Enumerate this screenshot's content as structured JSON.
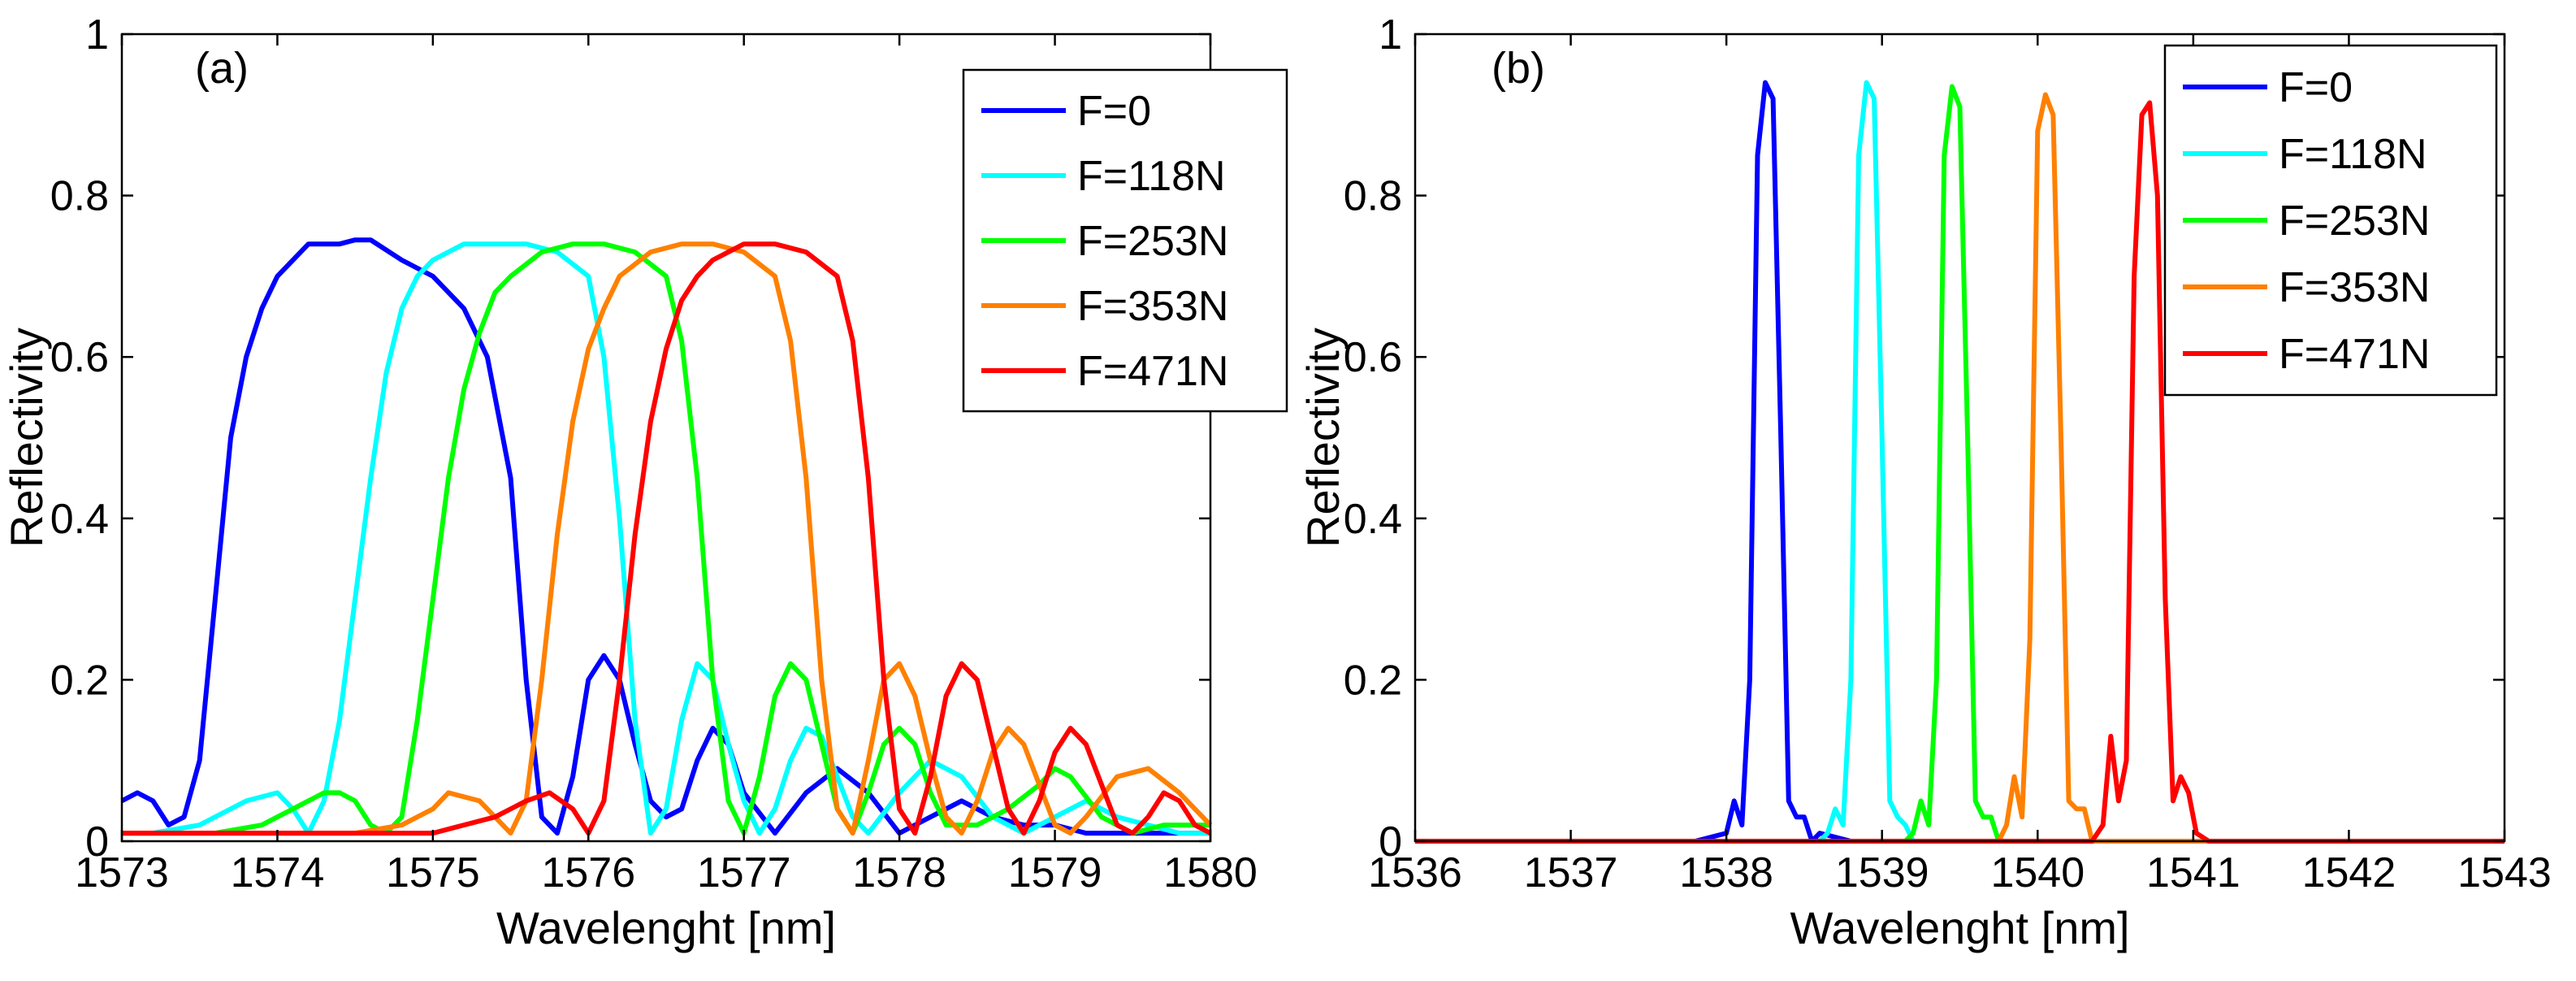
{
  "chart_data": [
    {
      "type": "line",
      "panel_label": "(a)",
      "xlabel": "Wavelenght [nm]",
      "ylabel": "Reflectivity",
      "xlim": [
        1573,
        1580
      ],
      "ylim": [
        0,
        1
      ],
      "xticks": [
        1573,
        1574,
        1575,
        1576,
        1577,
        1578,
        1579,
        1580
      ],
      "yticks": [
        0,
        0.2,
        0.4,
        0.6,
        0.8,
        1
      ],
      "ytick_labels": [
        "0",
        "0.2",
        "0.4",
        "0.6",
        "0.8",
        "1"
      ],
      "grid": false,
      "legend_position": "top-right",
      "series": [
        {
          "name": "F=0",
          "color": "#0000ff",
          "x": [
            1573.0,
            1573.1,
            1573.2,
            1573.3,
            1573.4,
            1573.5,
            1573.6,
            1573.7,
            1573.8,
            1573.9,
            1574.0,
            1574.1,
            1574.2,
            1574.3,
            1574.4,
            1574.5,
            1574.6,
            1574.8,
            1575.0,
            1575.2,
            1575.35,
            1575.5,
            1575.6,
            1575.7,
            1575.8,
            1575.9,
            1576.0,
            1576.1,
            1576.2,
            1576.3,
            1576.4,
            1576.5,
            1576.6,
            1576.7,
            1576.8,
            1576.9,
            1577.0,
            1577.2,
            1577.4,
            1577.6,
            1577.8,
            1578.0,
            1578.2,
            1578.4,
            1578.6,
            1578.8,
            1579.0,
            1579.2,
            1579.4,
            1579.6,
            1579.8,
            1580.0
          ],
          "y": [
            0.05,
            0.06,
            0.05,
            0.02,
            0.03,
            0.1,
            0.3,
            0.5,
            0.6,
            0.66,
            0.7,
            0.72,
            0.74,
            0.74,
            0.74,
            0.745,
            0.745,
            0.72,
            0.7,
            0.66,
            0.6,
            0.45,
            0.2,
            0.03,
            0.01,
            0.08,
            0.2,
            0.23,
            0.2,
            0.12,
            0.05,
            0.03,
            0.04,
            0.1,
            0.14,
            0.12,
            0.06,
            0.01,
            0.06,
            0.09,
            0.06,
            0.01,
            0.03,
            0.05,
            0.03,
            0.02,
            0.02,
            0.01,
            0.01,
            0.01,
            0.01,
            0.01
          ]
        },
        {
          "name": "F=118N",
          "color": "#00ffff",
          "x": [
            1573.0,
            1573.2,
            1573.5,
            1573.8,
            1574.0,
            1574.1,
            1574.2,
            1574.3,
            1574.4,
            1574.5,
            1574.6,
            1574.7,
            1574.8,
            1574.9,
            1575.0,
            1575.2,
            1575.4,
            1575.6,
            1575.8,
            1576.0,
            1576.1,
            1576.2,
            1576.3,
            1576.4,
            1576.5,
            1576.6,
            1576.7,
            1576.8,
            1576.9,
            1577.0,
            1577.1,
            1577.2,
            1577.3,
            1577.4,
            1577.5,
            1577.6,
            1577.7,
            1577.8,
            1578.0,
            1578.2,
            1578.4,
            1578.6,
            1578.8,
            1579.0,
            1579.2,
            1579.4,
            1579.6,
            1579.8,
            1580.0
          ],
          "y": [
            0.01,
            0.01,
            0.02,
            0.05,
            0.06,
            0.04,
            0.01,
            0.05,
            0.15,
            0.3,
            0.45,
            0.58,
            0.66,
            0.7,
            0.72,
            0.74,
            0.74,
            0.74,
            0.73,
            0.7,
            0.6,
            0.4,
            0.15,
            0.01,
            0.04,
            0.15,
            0.22,
            0.2,
            0.12,
            0.05,
            0.01,
            0.04,
            0.1,
            0.14,
            0.13,
            0.08,
            0.03,
            0.01,
            0.06,
            0.1,
            0.08,
            0.03,
            0.01,
            0.03,
            0.05,
            0.03,
            0.02,
            0.01,
            0.01
          ]
        },
        {
          "name": "F=253N",
          "color": "#00ff00",
          "x": [
            1573.0,
            1573.3,
            1573.6,
            1573.9,
            1574.1,
            1574.3,
            1574.4,
            1574.5,
            1574.6,
            1574.7,
            1574.8,
            1574.9,
            1575.0,
            1575.1,
            1575.2,
            1575.3,
            1575.4,
            1575.5,
            1575.7,
            1575.9,
            1576.1,
            1576.3,
            1576.5,
            1576.6,
            1576.7,
            1576.8,
            1576.9,
            1577.0,
            1577.1,
            1577.2,
            1577.3,
            1577.4,
            1577.5,
            1577.6,
            1577.7,
            1577.8,
            1577.9,
            1578.0,
            1578.1,
            1578.2,
            1578.3,
            1578.5,
            1578.7,
            1578.9,
            1579.0,
            1579.1,
            1579.3,
            1579.5,
            1579.7,
            1580.0
          ],
          "y": [
            0.01,
            0.01,
            0.01,
            0.02,
            0.04,
            0.06,
            0.06,
            0.05,
            0.02,
            0.01,
            0.03,
            0.15,
            0.3,
            0.45,
            0.56,
            0.63,
            0.68,
            0.7,
            0.73,
            0.74,
            0.74,
            0.73,
            0.7,
            0.62,
            0.45,
            0.2,
            0.05,
            0.01,
            0.08,
            0.18,
            0.22,
            0.2,
            0.12,
            0.04,
            0.01,
            0.06,
            0.12,
            0.14,
            0.12,
            0.06,
            0.02,
            0.02,
            0.04,
            0.07,
            0.09,
            0.08,
            0.03,
            0.01,
            0.02,
            0.02
          ]
        },
        {
          "name": "F=353N",
          "color": "#ff8000",
          "x": [
            1573.0,
            1573.5,
            1574.0,
            1574.5,
            1574.8,
            1575.0,
            1575.1,
            1575.3,
            1575.5,
            1575.6,
            1575.7,
            1575.8,
            1575.9,
            1576.0,
            1576.1,
            1576.2,
            1576.4,
            1576.6,
            1576.8,
            1577.0,
            1577.2,
            1577.3,
            1577.4,
            1577.5,
            1577.6,
            1577.7,
            1577.8,
            1577.9,
            1578.0,
            1578.1,
            1578.2,
            1578.3,
            1578.4,
            1578.5,
            1578.6,
            1578.7,
            1578.8,
            1578.9,
            1579.0,
            1579.1,
            1579.2,
            1579.4,
            1579.6,
            1579.8,
            1580.0
          ],
          "y": [
            0.01,
            0.01,
            0.01,
            0.01,
            0.02,
            0.04,
            0.06,
            0.05,
            0.01,
            0.05,
            0.2,
            0.38,
            0.52,
            0.61,
            0.66,
            0.7,
            0.73,
            0.74,
            0.74,
            0.73,
            0.7,
            0.62,
            0.45,
            0.2,
            0.04,
            0.01,
            0.1,
            0.2,
            0.22,
            0.18,
            0.1,
            0.03,
            0.01,
            0.05,
            0.11,
            0.14,
            0.12,
            0.07,
            0.02,
            0.01,
            0.03,
            0.08,
            0.09,
            0.06,
            0.02
          ]
        },
        {
          "name": "F=471N",
          "color": "#ff0000",
          "x": [
            1573.0,
            1573.5,
            1574.0,
            1574.5,
            1575.0,
            1575.2,
            1575.4,
            1575.6,
            1575.75,
            1575.9,
            1576.0,
            1576.1,
            1576.2,
            1576.3,
            1576.4,
            1576.5,
            1576.6,
            1576.7,
            1576.8,
            1577.0,
            1577.2,
            1577.4,
            1577.6,
            1577.7,
            1577.8,
            1577.9,
            1578.0,
            1578.1,
            1578.2,
            1578.3,
            1578.4,
            1578.5,
            1578.6,
            1578.7,
            1578.8,
            1578.9,
            1579.0,
            1579.1,
            1579.2,
            1579.3,
            1579.4,
            1579.5,
            1579.6,
            1579.7,
            1579.8,
            1579.9,
            1580.0
          ],
          "y": [
            0.01,
            0.01,
            0.01,
            0.01,
            0.01,
            0.02,
            0.03,
            0.05,
            0.06,
            0.04,
            0.01,
            0.05,
            0.2,
            0.38,
            0.52,
            0.61,
            0.67,
            0.7,
            0.72,
            0.74,
            0.74,
            0.73,
            0.7,
            0.62,
            0.45,
            0.2,
            0.04,
            0.01,
            0.08,
            0.18,
            0.22,
            0.2,
            0.12,
            0.04,
            0.01,
            0.05,
            0.11,
            0.14,
            0.12,
            0.07,
            0.02,
            0.01,
            0.03,
            0.06,
            0.05,
            0.02,
            0.01
          ]
        }
      ]
    },
    {
      "type": "line",
      "panel_label": "(b)",
      "xlabel": "Wavelenght [nm]",
      "ylabel": "Reflectivity",
      "xlim": [
        1536,
        1543
      ],
      "ylim": [
        0,
        1
      ],
      "xticks": [
        1536,
        1537,
        1538,
        1539,
        1540,
        1541,
        1542,
        1543
      ],
      "yticks": [
        0,
        0.2,
        0.4,
        0.6,
        0.8,
        1
      ],
      "ytick_labels": [
        "0",
        "0.2",
        "0.4",
        "0.6",
        "0.8",
        "1"
      ],
      "grid": false,
      "legend_position": "top-right",
      "series": [
        {
          "name": "F=0",
          "color": "#0000ff",
          "x": [
            1536.0,
            1537.8,
            1538.0,
            1538.05,
            1538.1,
            1538.15,
            1538.2,
            1538.25,
            1538.3,
            1538.35,
            1538.4,
            1538.45,
            1538.5,
            1538.55,
            1538.6,
            1538.8,
            1543.0
          ],
          "y": [
            0.0,
            0.0,
            0.01,
            0.05,
            0.02,
            0.2,
            0.85,
            0.94,
            0.92,
            0.5,
            0.05,
            0.03,
            0.03,
            0.0,
            0.01,
            0.0,
            0.0
          ]
        },
        {
          "name": "F=118N",
          "color": "#00ffff",
          "x": [
            1536.0,
            1538.6,
            1538.65,
            1538.7,
            1538.75,
            1538.8,
            1538.85,
            1538.9,
            1538.95,
            1539.0,
            1539.05,
            1539.1,
            1539.15,
            1539.2,
            1539.3,
            1543.0
          ],
          "y": [
            0.0,
            0.0,
            0.01,
            0.04,
            0.02,
            0.2,
            0.85,
            0.94,
            0.92,
            0.5,
            0.05,
            0.03,
            0.02,
            0.0,
            0.0,
            0.0
          ]
        },
        {
          "name": "F=253N",
          "color": "#00ff00",
          "x": [
            1536.0,
            1539.15,
            1539.2,
            1539.25,
            1539.3,
            1539.35,
            1539.4,
            1539.45,
            1539.5,
            1539.55,
            1539.6,
            1539.65,
            1539.7,
            1539.75,
            1539.85,
            1543.0
          ],
          "y": [
            0.0,
            0.0,
            0.01,
            0.05,
            0.02,
            0.2,
            0.85,
            0.935,
            0.91,
            0.5,
            0.05,
            0.03,
            0.03,
            0.0,
            0.0,
            0.0
          ]
        },
        {
          "name": "F=353N",
          "color": "#ff8000",
          "x": [
            1536.0,
            1539.75,
            1539.8,
            1539.85,
            1539.9,
            1539.95,
            1540.0,
            1540.05,
            1540.1,
            1540.15,
            1540.2,
            1540.25,
            1540.3,
            1540.35,
            1540.45,
            1543.0
          ],
          "y": [
            0.0,
            0.0,
            0.02,
            0.08,
            0.03,
            0.25,
            0.88,
            0.925,
            0.9,
            0.5,
            0.05,
            0.04,
            0.04,
            0.0,
            0.0,
            0.0
          ]
        },
        {
          "name": "F=471N",
          "color": "#ff0000",
          "x": [
            1536.0,
            1540.35,
            1540.42,
            1540.47,
            1540.52,
            1540.57,
            1540.62,
            1540.67,
            1540.72,
            1540.77,
            1540.82,
            1540.87,
            1540.92,
            1540.97,
            1541.02,
            1541.1,
            1543.0
          ],
          "y": [
            0.0,
            0.0,
            0.02,
            0.13,
            0.05,
            0.1,
            0.7,
            0.9,
            0.915,
            0.8,
            0.3,
            0.05,
            0.08,
            0.06,
            0.01,
            0.0,
            0.0
          ]
        }
      ]
    }
  ]
}
